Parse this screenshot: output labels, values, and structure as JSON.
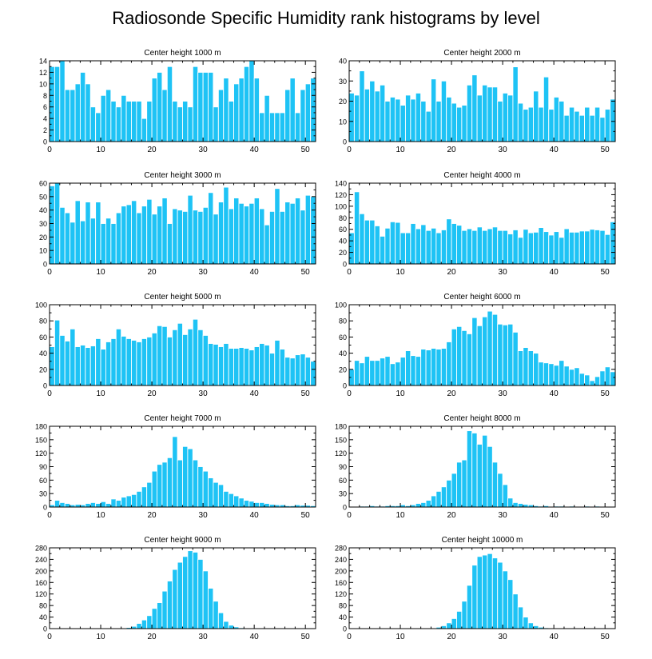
{
  "title": "Radiosonde Specific Humidity rank histograms by level",
  "chart_data": [
    {
      "type": "bar",
      "title": "Center height 1000 m",
      "x": [
        0,
        1,
        2,
        3,
        4,
        5,
        6,
        7,
        8,
        9,
        10,
        11,
        12,
        13,
        14,
        15,
        16,
        17,
        18,
        19,
        20,
        21,
        22,
        23,
        24,
        25,
        26,
        27,
        28,
        29,
        30,
        31,
        32,
        33,
        34,
        35,
        36,
        37,
        38,
        39,
        40,
        41,
        42,
        43,
        44,
        45,
        46,
        47,
        48,
        49,
        50,
        51
      ],
      "values": [
        13,
        13,
        14,
        9,
        9,
        10,
        12,
        10,
        6,
        5,
        8,
        9,
        7,
        6,
        8,
        7,
        7,
        7,
        4,
        7,
        11,
        12,
        9,
        13,
        7,
        6,
        7,
        6,
        13,
        12,
        12,
        12,
        6,
        9,
        11,
        7,
        10,
        11,
        13,
        14,
        11,
        5,
        8,
        5,
        5,
        5,
        9,
        11,
        5,
        9,
        10,
        11
      ],
      "xlim": [
        0,
        52
      ],
      "ylim": [
        0,
        14
      ],
      "xticks": [
        0,
        10,
        20,
        30,
        40,
        50
      ],
      "yticks": [
        0,
        2,
        4,
        6,
        8,
        10,
        12,
        14
      ]
    },
    {
      "type": "bar",
      "title": "Center height 2000 m",
      "x": [
        0,
        1,
        2,
        3,
        4,
        5,
        6,
        7,
        8,
        9,
        10,
        11,
        12,
        13,
        14,
        15,
        16,
        17,
        18,
        19,
        20,
        21,
        22,
        23,
        24,
        25,
        26,
        27,
        28,
        29,
        30,
        31,
        32,
        33,
        34,
        35,
        36,
        37,
        38,
        39,
        40,
        41,
        42,
        43,
        44,
        45,
        46,
        47,
        48,
        49,
        50,
        51
      ],
      "values": [
        24,
        23,
        35,
        26,
        30,
        25,
        28,
        20,
        22,
        21,
        18,
        23,
        21,
        24,
        20,
        15,
        31,
        20,
        30,
        22,
        19,
        17,
        18,
        28,
        33,
        23,
        28,
        27,
        27,
        20,
        24,
        23,
        37,
        19,
        16,
        17,
        25,
        17,
        32,
        16,
        22,
        20,
        13,
        17,
        15,
        13,
        17,
        13,
        17,
        12,
        16,
        21
      ],
      "xlim": [
        0,
        52
      ],
      "ylim": [
        0,
        40
      ],
      "xticks": [
        0,
        10,
        20,
        30,
        40,
        50
      ],
      "yticks": [
        0,
        10,
        20,
        30,
        40
      ]
    },
    {
      "type": "bar",
      "title": "Center height 3000 m",
      "x": [
        0,
        1,
        2,
        3,
        4,
        5,
        6,
        7,
        8,
        9,
        10,
        11,
        12,
        13,
        14,
        15,
        16,
        17,
        18,
        19,
        20,
        21,
        22,
        23,
        24,
        25,
        26,
        27,
        28,
        29,
        30,
        31,
        32,
        33,
        34,
        35,
        36,
        37,
        38,
        39,
        40,
        41,
        42,
        43,
        44,
        45,
        46,
        47,
        48,
        49,
        50,
        51
      ],
      "values": [
        58,
        60,
        42,
        38,
        31,
        47,
        32,
        46,
        34,
        46,
        30,
        34,
        30,
        38,
        43,
        44,
        47,
        38,
        43,
        48,
        37,
        43,
        49,
        30,
        41,
        40,
        39,
        51,
        40,
        39,
        42,
        53,
        37,
        46,
        57,
        41,
        49,
        45,
        43,
        45,
        49,
        41,
        29,
        39,
        56,
        39,
        46,
        45,
        49,
        40,
        51,
        50
      ],
      "xlim": [
        0,
        52
      ],
      "ylim": [
        0,
        60
      ],
      "xticks": [
        0,
        10,
        20,
        30,
        40,
        50
      ],
      "yticks": [
        0,
        10,
        20,
        30,
        40,
        50,
        60
      ]
    },
    {
      "type": "bar",
      "title": "Center height 4000 m",
      "x": [
        0,
        1,
        2,
        3,
        4,
        5,
        6,
        7,
        8,
        9,
        10,
        11,
        12,
        13,
        14,
        15,
        16,
        17,
        18,
        19,
        20,
        21,
        22,
        23,
        24,
        25,
        26,
        27,
        28,
        29,
        30,
        31,
        32,
        33,
        34,
        35,
        36,
        37,
        38,
        39,
        40,
        41,
        42,
        43,
        44,
        45,
        46,
        47,
        48,
        49,
        50,
        51
      ],
      "values": [
        54,
        125,
        87,
        76,
        76,
        66,
        48,
        62,
        73,
        72,
        54,
        54,
        70,
        61,
        68,
        58,
        62,
        54,
        59,
        78,
        70,
        67,
        58,
        61,
        58,
        64,
        58,
        61,
        64,
        58,
        58,
        52,
        59,
        46,
        60,
        54,
        55,
        63,
        56,
        50,
        56,
        46,
        61,
        55,
        55,
        57,
        57,
        60,
        59,
        58,
        51,
        73
      ],
      "xlim": [
        0,
        52
      ],
      "ylim": [
        0,
        140
      ],
      "xticks": [
        0,
        10,
        20,
        30,
        40,
        50
      ],
      "yticks": [
        0,
        20,
        40,
        60,
        80,
        100,
        120,
        140
      ]
    },
    {
      "type": "bar",
      "title": "Center height 5000 m",
      "x": [
        0,
        1,
        2,
        3,
        4,
        5,
        6,
        7,
        8,
        9,
        10,
        11,
        12,
        13,
        14,
        15,
        16,
        17,
        18,
        19,
        20,
        21,
        22,
        23,
        24,
        25,
        26,
        27,
        28,
        29,
        30,
        31,
        32,
        33,
        34,
        35,
        36,
        37,
        38,
        39,
        40,
        41,
        42,
        43,
        44,
        45,
        46,
        47,
        48,
        49,
        50,
        51
      ],
      "values": [
        48,
        81,
        62,
        55,
        70,
        48,
        50,
        47,
        49,
        58,
        45,
        54,
        58,
        70,
        61,
        58,
        56,
        54,
        58,
        60,
        65,
        74,
        73,
        60,
        69,
        77,
        63,
        70,
        82,
        69,
        62,
        52,
        51,
        48,
        52,
        46,
        46,
        47,
        46,
        44,
        48,
        52,
        50,
        40,
        56,
        45,
        35,
        34,
        38,
        39,
        35,
        30
      ],
      "xlim": [
        0,
        52
      ],
      "ylim": [
        0,
        100
      ],
      "xticks": [
        0,
        10,
        20,
        30,
        40,
        50
      ],
      "yticks": [
        0,
        20,
        40,
        60,
        80,
        100
      ]
    },
    {
      "type": "bar",
      "title": "Center height 6000 m",
      "x": [
        0,
        1,
        2,
        3,
        4,
        5,
        6,
        7,
        8,
        9,
        10,
        11,
        12,
        13,
        14,
        15,
        16,
        17,
        18,
        19,
        20,
        21,
        22,
        23,
        24,
        25,
        26,
        27,
        28,
        29,
        30,
        31,
        32,
        33,
        34,
        35,
        36,
        37,
        38,
        39,
        40,
        41,
        42,
        43,
        44,
        45,
        46,
        47,
        48,
        49,
        50,
        51
      ],
      "values": [
        20,
        31,
        28,
        36,
        31,
        31,
        34,
        36,
        27,
        29,
        35,
        43,
        37,
        36,
        45,
        44,
        46,
        45,
        46,
        54,
        70,
        73,
        68,
        64,
        84,
        74,
        85,
        92,
        88,
        76,
        75,
        76,
        66,
        43,
        47,
        43,
        40,
        29,
        28,
        27,
        25,
        31,
        24,
        20,
        22,
        15,
        13,
        6,
        11,
        18,
        23,
        17
      ],
      "xlim": [
        0,
        52
      ],
      "ylim": [
        0,
        100
      ],
      "xticks": [
        0,
        10,
        20,
        30,
        40,
        50
      ],
      "yticks": [
        0,
        20,
        40,
        60,
        80,
        100
      ]
    },
    {
      "type": "bar",
      "title": "Center height 7000 m",
      "x": [
        0,
        1,
        2,
        3,
        4,
        5,
        6,
        7,
        8,
        9,
        10,
        11,
        12,
        13,
        14,
        15,
        16,
        17,
        18,
        19,
        20,
        21,
        22,
        23,
        24,
        25,
        26,
        27,
        28,
        29,
        30,
        31,
        32,
        33,
        34,
        35,
        36,
        37,
        38,
        39,
        40,
        41,
        42,
        43,
        44,
        45,
        46,
        47,
        48,
        49,
        50,
        51
      ],
      "values": [
        5,
        15,
        10,
        8,
        5,
        6,
        5,
        8,
        10,
        8,
        12,
        8,
        18,
        15,
        22,
        25,
        28,
        35,
        45,
        55,
        80,
        95,
        100,
        110,
        157,
        105,
        135,
        130,
        105,
        90,
        80,
        65,
        55,
        50,
        35,
        30,
        25,
        20,
        15,
        13,
        10,
        10,
        8,
        6,
        5,
        5,
        3,
        3,
        5,
        4,
        4,
        3
      ],
      "xlim": [
        0,
        52
      ],
      "ylim": [
        0,
        180
      ],
      "xticks": [
        0,
        10,
        20,
        30,
        40,
        50
      ],
      "yticks": [
        0,
        30,
        60,
        90,
        120,
        150,
        180
      ]
    },
    {
      "type": "bar",
      "title": "Center height 8000 m",
      "x": [
        0,
        1,
        2,
        3,
        4,
        5,
        6,
        7,
        8,
        9,
        10,
        11,
        12,
        13,
        14,
        15,
        16,
        17,
        18,
        19,
        20,
        21,
        22,
        23,
        24,
        25,
        26,
        27,
        28,
        29,
        30,
        31,
        32,
        33,
        34,
        35,
        36,
        37,
        38,
        39,
        40,
        41,
        42,
        43,
        44,
        45,
        46,
        47,
        48,
        49,
        50,
        51
      ],
      "values": [
        1,
        1,
        2,
        2,
        3,
        2,
        2,
        3,
        3,
        3,
        5,
        3,
        5,
        8,
        10,
        15,
        25,
        35,
        45,
        60,
        75,
        100,
        105,
        170,
        165,
        140,
        160,
        135,
        100,
        75,
        50,
        20,
        10,
        8,
        6,
        5,
        3,
        2,
        3,
        1,
        2,
        2,
        1,
        2,
        1,
        1,
        2,
        1,
        2,
        1,
        1,
        1
      ],
      "xlim": [
        0,
        52
      ],
      "ylim": [
        0,
        180
      ],
      "xticks": [
        0,
        10,
        20,
        30,
        40,
        50
      ],
      "yticks": [
        0,
        30,
        60,
        90,
        120,
        150,
        180
      ]
    },
    {
      "type": "bar",
      "title": "Center height 9000 m",
      "x": [
        0,
        1,
        2,
        3,
        4,
        5,
        6,
        7,
        8,
        9,
        10,
        11,
        12,
        13,
        14,
        15,
        16,
        17,
        18,
        19,
        20,
        21,
        22,
        23,
        24,
        25,
        26,
        27,
        28,
        29,
        30,
        31,
        32,
        33,
        34,
        35,
        36,
        37,
        38,
        39,
        40,
        41,
        42,
        43,
        44,
        45,
        46,
        47,
        48,
        49,
        50,
        51
      ],
      "values": [
        0,
        0,
        0,
        0,
        0,
        0,
        0,
        0,
        0,
        0,
        0,
        0,
        1,
        1,
        2,
        4,
        8,
        18,
        30,
        45,
        70,
        90,
        130,
        165,
        205,
        230,
        250,
        270,
        265,
        240,
        200,
        140,
        95,
        55,
        25,
        12,
        6,
        3,
        2,
        1,
        1,
        1,
        1,
        0,
        0,
        0,
        0,
        0,
        1,
        0,
        0,
        0
      ],
      "xlim": [
        0,
        52
      ],
      "ylim": [
        0,
        280
      ],
      "xticks": [
        0,
        10,
        20,
        30,
        40,
        50
      ],
      "yticks": [
        0,
        40,
        80,
        120,
        160,
        200,
        240,
        280
      ]
    },
    {
      "type": "bar",
      "title": "Center height 10000 m",
      "x": [
        0,
        1,
        2,
        3,
        4,
        5,
        6,
        7,
        8,
        9,
        10,
        11,
        12,
        13,
        14,
        15,
        16,
        17,
        18,
        19,
        20,
        21,
        22,
        23,
        24,
        25,
        26,
        27,
        28,
        29,
        30,
        31,
        32,
        33,
        34,
        35,
        36,
        37,
        38,
        39,
        40,
        41,
        42,
        43,
        44,
        45,
        46,
        47,
        48,
        49,
        50,
        51
      ],
      "values": [
        0,
        0,
        0,
        0,
        0,
        0,
        0,
        0,
        0,
        0,
        0,
        0,
        0,
        0,
        0,
        0,
        2,
        5,
        10,
        20,
        35,
        60,
        95,
        150,
        220,
        250,
        255,
        260,
        245,
        230,
        200,
        170,
        120,
        75,
        40,
        20,
        10,
        5,
        3,
        2,
        1,
        1,
        0,
        0,
        0,
        0,
        0,
        0,
        0,
        0,
        0,
        0
      ],
      "xlim": [
        0,
        52
      ],
      "ylim": [
        0,
        280
      ],
      "xticks": [
        0,
        10,
        20,
        30,
        40,
        50
      ],
      "yticks": [
        0,
        40,
        80,
        120,
        160,
        200,
        240,
        280
      ]
    }
  ],
  "colors": {
    "bar_fill": "#1ec3f5",
    "bar_stroke": "#ffffff",
    "axis": "#000000"
  }
}
